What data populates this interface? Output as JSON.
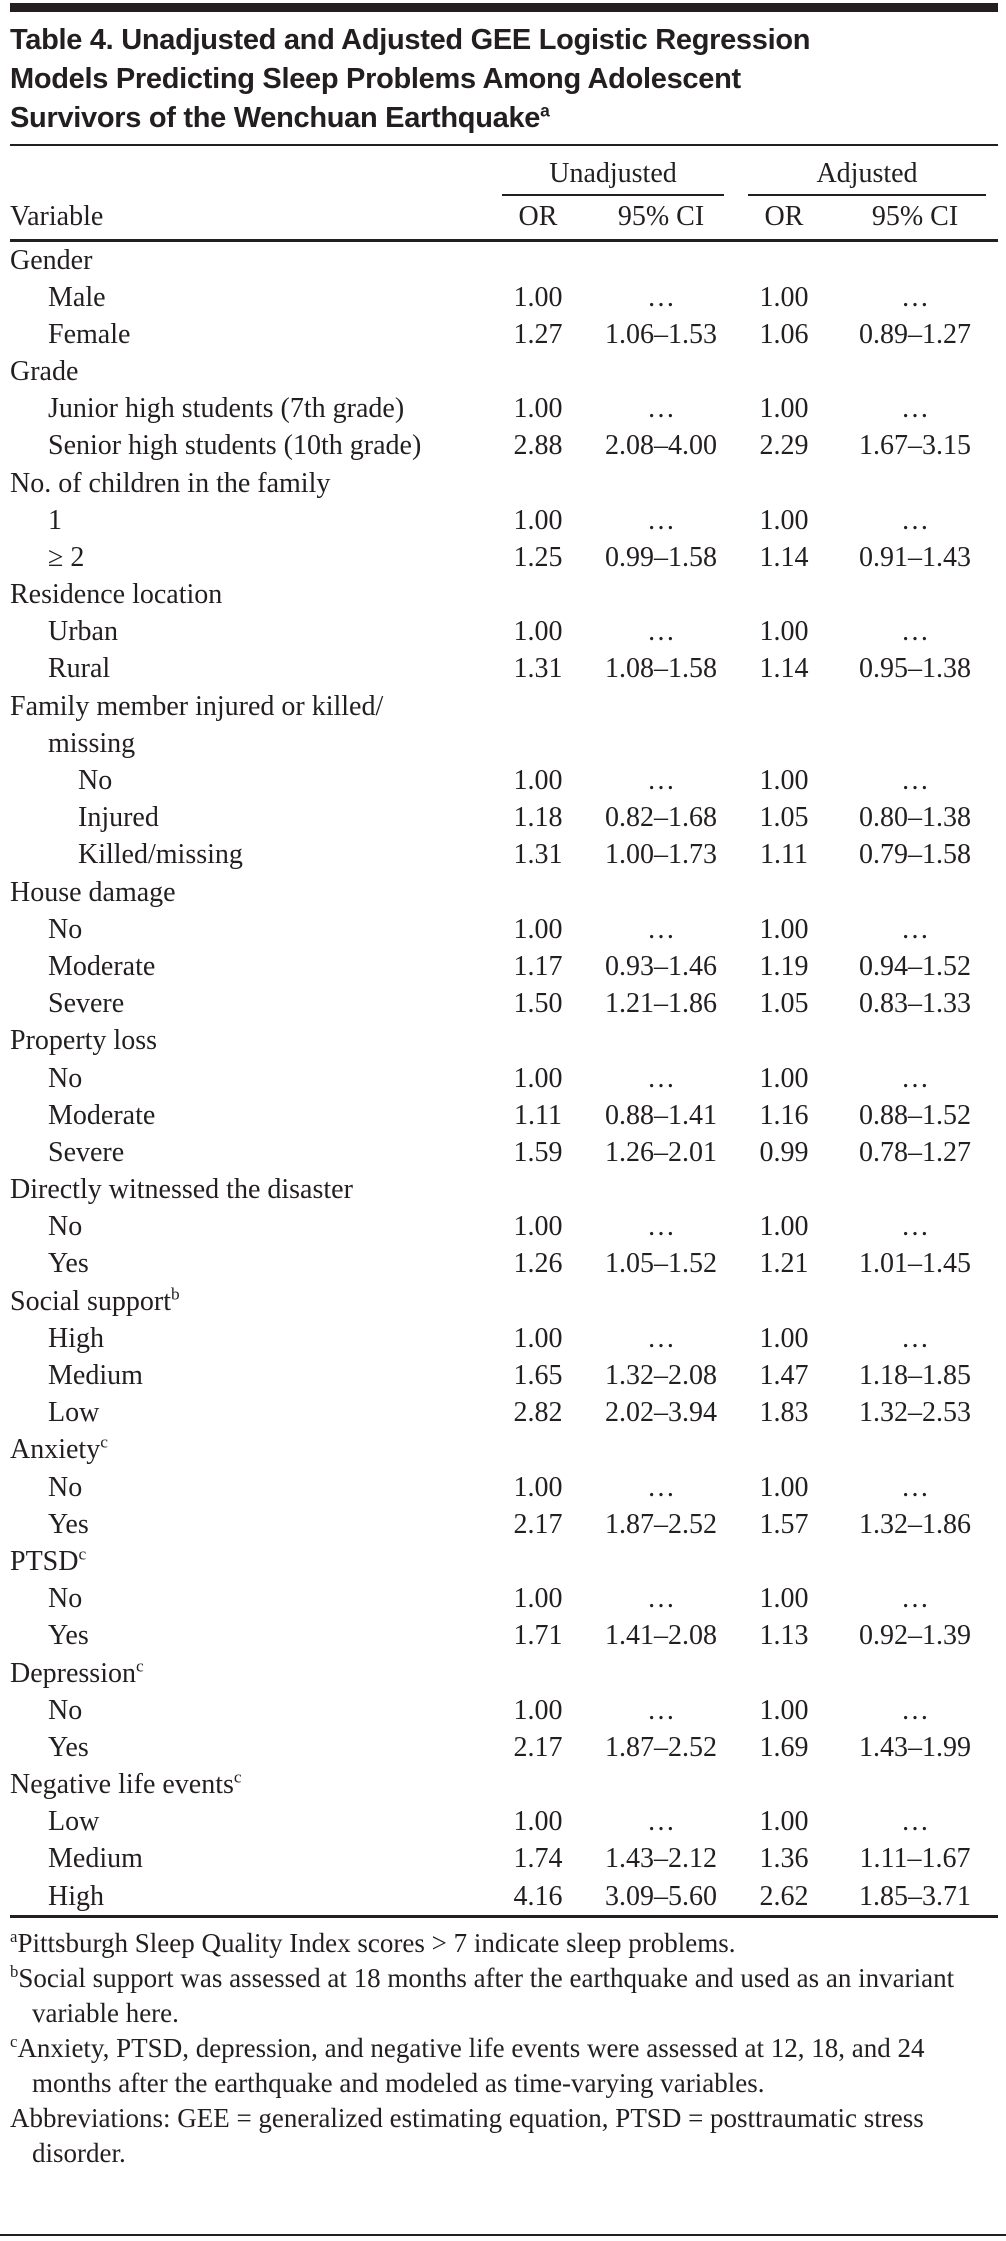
{
  "title": {
    "lines": [
      "Table 4. Unadjusted and Adjusted GEE Logistic Regression",
      "Models Predicting Sleep Problems Among Adolescent",
      "Survivors of the Wenchuan Earthquake"
    ],
    "superscript": "a"
  },
  "table": {
    "header": {
      "variable": "Variable",
      "spanners": [
        "Unadjusted",
        "Adjusted"
      ],
      "cols": [
        "OR",
        "95% CI",
        "OR",
        "95% CI"
      ]
    },
    "rows": [
      {
        "label": "Gender",
        "indent": 0,
        "cells": [
          "",
          "",
          "",
          ""
        ]
      },
      {
        "label": "Male",
        "indent": 1,
        "cells": [
          "1.00",
          "…",
          "1.00",
          "…"
        ]
      },
      {
        "label": "Female",
        "indent": 1,
        "cells": [
          "1.27",
          "1.06–1.53",
          "1.06",
          "0.89–1.27"
        ]
      },
      {
        "label": "Grade",
        "indent": 0,
        "cells": [
          "",
          "",
          "",
          ""
        ]
      },
      {
        "label": "Junior high students (7th grade)",
        "indent": 1,
        "cells": [
          "1.00",
          "…",
          "1.00",
          "…"
        ]
      },
      {
        "label": "Senior high students (10th grade)",
        "indent": 1,
        "cells": [
          "2.88",
          "2.08–4.00",
          "2.29",
          "1.67–3.15"
        ]
      },
      {
        "label": "No. of children in the family",
        "indent": 0,
        "cells": [
          "",
          "",
          "",
          ""
        ]
      },
      {
        "label": "1",
        "indent": 1,
        "cells": [
          "1.00",
          "…",
          "1.00",
          "…"
        ]
      },
      {
        "label": "≥ 2",
        "indent": 1,
        "cells": [
          "1.25",
          "0.99–1.58",
          "1.14",
          "0.91–1.43"
        ]
      },
      {
        "label": "Residence location",
        "indent": 0,
        "cells": [
          "",
          "",
          "",
          ""
        ]
      },
      {
        "label": "Urban",
        "indent": 1,
        "cells": [
          "1.00",
          "…",
          "1.00",
          "…"
        ]
      },
      {
        "label": "Rural",
        "indent": 1,
        "cells": [
          "1.31",
          "1.08–1.58",
          "1.14",
          "0.95–1.38"
        ]
      },
      {
        "label": "Family member injured or killed/",
        "indent": 0,
        "cells": [
          "",
          "",
          "",
          ""
        ]
      },
      {
        "label": "missing",
        "indent": 1,
        "cells": [
          "",
          "",
          "",
          ""
        ]
      },
      {
        "label": "No",
        "indent": 2,
        "cells": [
          "1.00",
          "…",
          "1.00",
          "…"
        ]
      },
      {
        "label": "Injured",
        "indent": 2,
        "cells": [
          "1.18",
          "0.82–1.68",
          "1.05",
          "0.80–1.38"
        ]
      },
      {
        "label": "Killed/missing",
        "indent": 2,
        "cells": [
          "1.31",
          "1.00–1.73",
          "1.11",
          "0.79–1.58"
        ]
      },
      {
        "label": "House damage",
        "indent": 0,
        "cells": [
          "",
          "",
          "",
          ""
        ]
      },
      {
        "label": "No",
        "indent": 1,
        "cells": [
          "1.00",
          "…",
          "1.00",
          "…"
        ]
      },
      {
        "label": "Moderate",
        "indent": 1,
        "cells": [
          "1.17",
          "0.93–1.46",
          "1.19",
          "0.94–1.52"
        ]
      },
      {
        "label": "Severe",
        "indent": 1,
        "cells": [
          "1.50",
          "1.21–1.86",
          "1.05",
          "0.83–1.33"
        ]
      },
      {
        "label": "Property loss",
        "indent": 0,
        "cells": [
          "",
          "",
          "",
          ""
        ]
      },
      {
        "label": "No",
        "indent": 1,
        "cells": [
          "1.00",
          "…",
          "1.00",
          "…"
        ]
      },
      {
        "label": "Moderate",
        "indent": 1,
        "cells": [
          "1.11",
          "0.88–1.41",
          "1.16",
          "0.88–1.52"
        ]
      },
      {
        "label": "Severe",
        "indent": 1,
        "cells": [
          "1.59",
          "1.26–2.01",
          "0.99",
          "0.78–1.27"
        ]
      },
      {
        "label": "Directly witnessed the disaster",
        "indent": 0,
        "cells": [
          "",
          "",
          "",
          ""
        ]
      },
      {
        "label": "No",
        "indent": 1,
        "cells": [
          "1.00",
          "…",
          "1.00",
          "…"
        ]
      },
      {
        "label": "Yes",
        "indent": 1,
        "cells": [
          "1.26",
          "1.05–1.52",
          "1.21",
          "1.01–1.45"
        ]
      },
      {
        "label": "Social support",
        "sup": "b",
        "indent": 0,
        "cells": [
          "",
          "",
          "",
          ""
        ]
      },
      {
        "label": "High",
        "indent": 1,
        "cells": [
          "1.00",
          "…",
          "1.00",
          "…"
        ]
      },
      {
        "label": "Medium",
        "indent": 1,
        "cells": [
          "1.65",
          "1.32–2.08",
          "1.47",
          "1.18–1.85"
        ]
      },
      {
        "label": "Low",
        "indent": 1,
        "cells": [
          "2.82",
          "2.02–3.94",
          "1.83",
          "1.32–2.53"
        ]
      },
      {
        "label": "Anxiety",
        "sup": "c",
        "indent": 0,
        "cells": [
          "",
          "",
          "",
          ""
        ]
      },
      {
        "label": "No",
        "indent": 1,
        "cells": [
          "1.00",
          "…",
          "1.00",
          "…"
        ]
      },
      {
        "label": "Yes",
        "indent": 1,
        "cells": [
          "2.17",
          "1.87–2.52",
          "1.57",
          "1.32–1.86"
        ]
      },
      {
        "label": "PTSD",
        "sup": "c",
        "indent": 0,
        "cells": [
          "",
          "",
          "",
          ""
        ]
      },
      {
        "label": "No",
        "indent": 1,
        "cells": [
          "1.00",
          "…",
          "1.00",
          "…"
        ]
      },
      {
        "label": "Yes",
        "indent": 1,
        "cells": [
          "1.71",
          "1.41–2.08",
          "1.13",
          "0.92–1.39"
        ]
      },
      {
        "label": "Depression",
        "sup": "c",
        "indent": 0,
        "cells": [
          "",
          "",
          "",
          ""
        ]
      },
      {
        "label": "No",
        "indent": 1,
        "cells": [
          "1.00",
          "…",
          "1.00",
          "…"
        ]
      },
      {
        "label": "Yes",
        "indent": 1,
        "cells": [
          "2.17",
          "1.87–2.52",
          "1.69",
          "1.43–1.99"
        ]
      },
      {
        "label": "Negative life events",
        "sup": "c",
        "indent": 0,
        "cells": [
          "",
          "",
          "",
          ""
        ]
      },
      {
        "label": "Low",
        "indent": 1,
        "cells": [
          "1.00",
          "…",
          "1.00",
          "…"
        ]
      },
      {
        "label": "Medium",
        "indent": 1,
        "cells": [
          "1.74",
          "1.43–2.12",
          "1.36",
          "1.11–1.67"
        ]
      },
      {
        "label": "High",
        "indent": 1,
        "cells": [
          "4.16",
          "3.09–5.60",
          "2.62",
          "1.85–3.71"
        ]
      }
    ]
  },
  "footnotes": [
    {
      "marker": "a",
      "text": "Pittsburgh Sleep Quality Index scores > 7 indicate sleep problems."
    },
    {
      "marker": "b",
      "text": "Social support was assessed at 18 months after the earthquake and used as an invariant variable here."
    },
    {
      "marker": "c",
      "text": "Anxiety, PTSD, depression, and negative life events were assessed at 12, 18, and 24 months after the earthquake and modeled as time-varying variables."
    },
    {
      "marker": "",
      "text": "Abbreviations: GEE = generalized estimating equation, PTSD = posttraumatic stress disorder."
    }
  ],
  "colors": {
    "text": "#231f20",
    "rule": "#231f20",
    "background": "#ffffff"
  }
}
